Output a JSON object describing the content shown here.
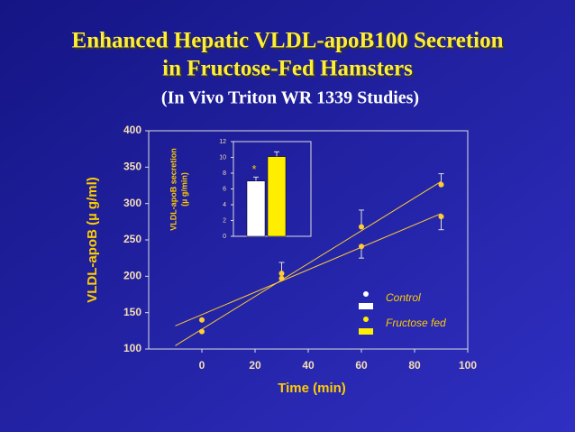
{
  "title": [
    "Enhanced Hepatic VLDL-apoB100 Secretion",
    "in Fructose-Fed Hamsters"
  ],
  "subtitle": "(In Vivo Triton WR 1339 Studies)",
  "chart_data": [
    {
      "type": "scatter",
      "x_label": "Time (min)",
      "y_label": "VLDL-apoB (µ g/ml)",
      "x": [
        0,
        30,
        60,
        90
      ],
      "series": [
        {
          "name": "Control",
          "color": "#ffffff",
          "values": [
            140,
            204,
            241,
            282
          ],
          "errors": [
            null,
            15,
            16,
            18
          ]
        },
        {
          "name": "Fructose fed",
          "color": "#ffee00",
          "values": [
            124,
            197,
            268,
            326
          ],
          "errors": [
            null,
            null,
            23,
            15
          ]
        }
      ],
      "trendline_color": "#ffcc33",
      "xlim": [
        -20,
        100
      ],
      "xticks": [
        0,
        20,
        40,
        60,
        80,
        100
      ],
      "ylim": [
        100,
        400
      ],
      "yticks": [
        100,
        150,
        200,
        250,
        300,
        350,
        400
      ]
    },
    {
      "type": "bar",
      "y_label": [
        "VLDL-apoB secretion",
        "(µ g/min)"
      ],
      "categories": [
        null,
        null
      ],
      "values": [
        7.0,
        10.1
      ],
      "errors": [
        0.5,
        0.6
      ],
      "colors": [
        "#ffffff",
        "#ffee00"
      ],
      "annotation": "*",
      "ylim": [
        0,
        12
      ],
      "yticks": [
        0,
        2,
        4,
        6,
        8,
        10,
        12
      ]
    }
  ]
}
